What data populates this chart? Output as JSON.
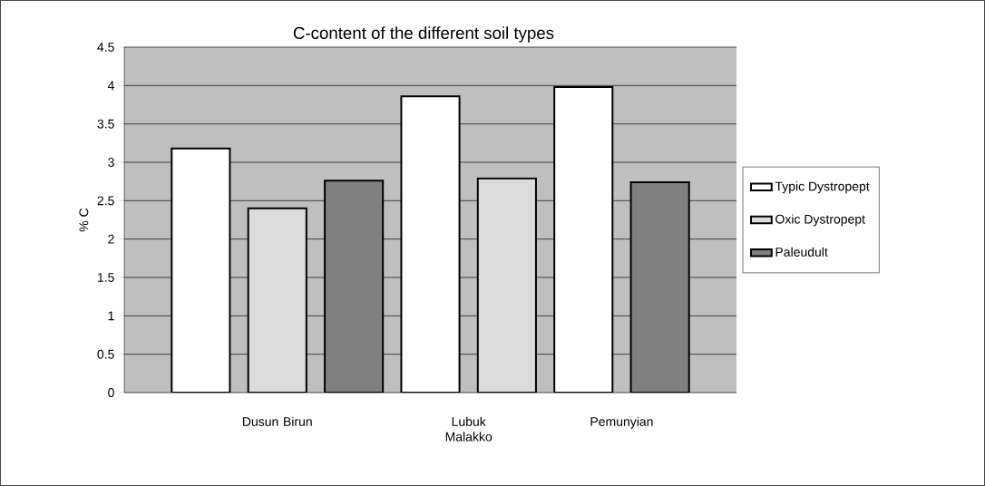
{
  "chart_data": {
    "type": "bar",
    "title": "C-content of the different soil types",
    "ylabel": "% C",
    "categories": [
      "Dusun Birun",
      "Lubuk Malakko",
      "Pemunyian"
    ],
    "series": [
      {
        "name": "Typic Dystropept",
        "color": "#ffffff",
        "values": [
          3.18,
          3.86,
          3.98
        ]
      },
      {
        "name": "Oxic Dystropept",
        "color": "#dcdcdc",
        "values": [
          2.4,
          2.79,
          null
        ]
      },
      {
        "name": "Paleudult",
        "color": "#808080",
        "values": [
          2.76,
          null,
          2.74
        ]
      }
    ],
    "ylim": [
      0,
      4.5
    ],
    "yticks": [
      0,
      0.5,
      1,
      1.5,
      2,
      2.5,
      3,
      3.5,
      4,
      4.5
    ],
    "grid": "y",
    "legend": "right"
  }
}
